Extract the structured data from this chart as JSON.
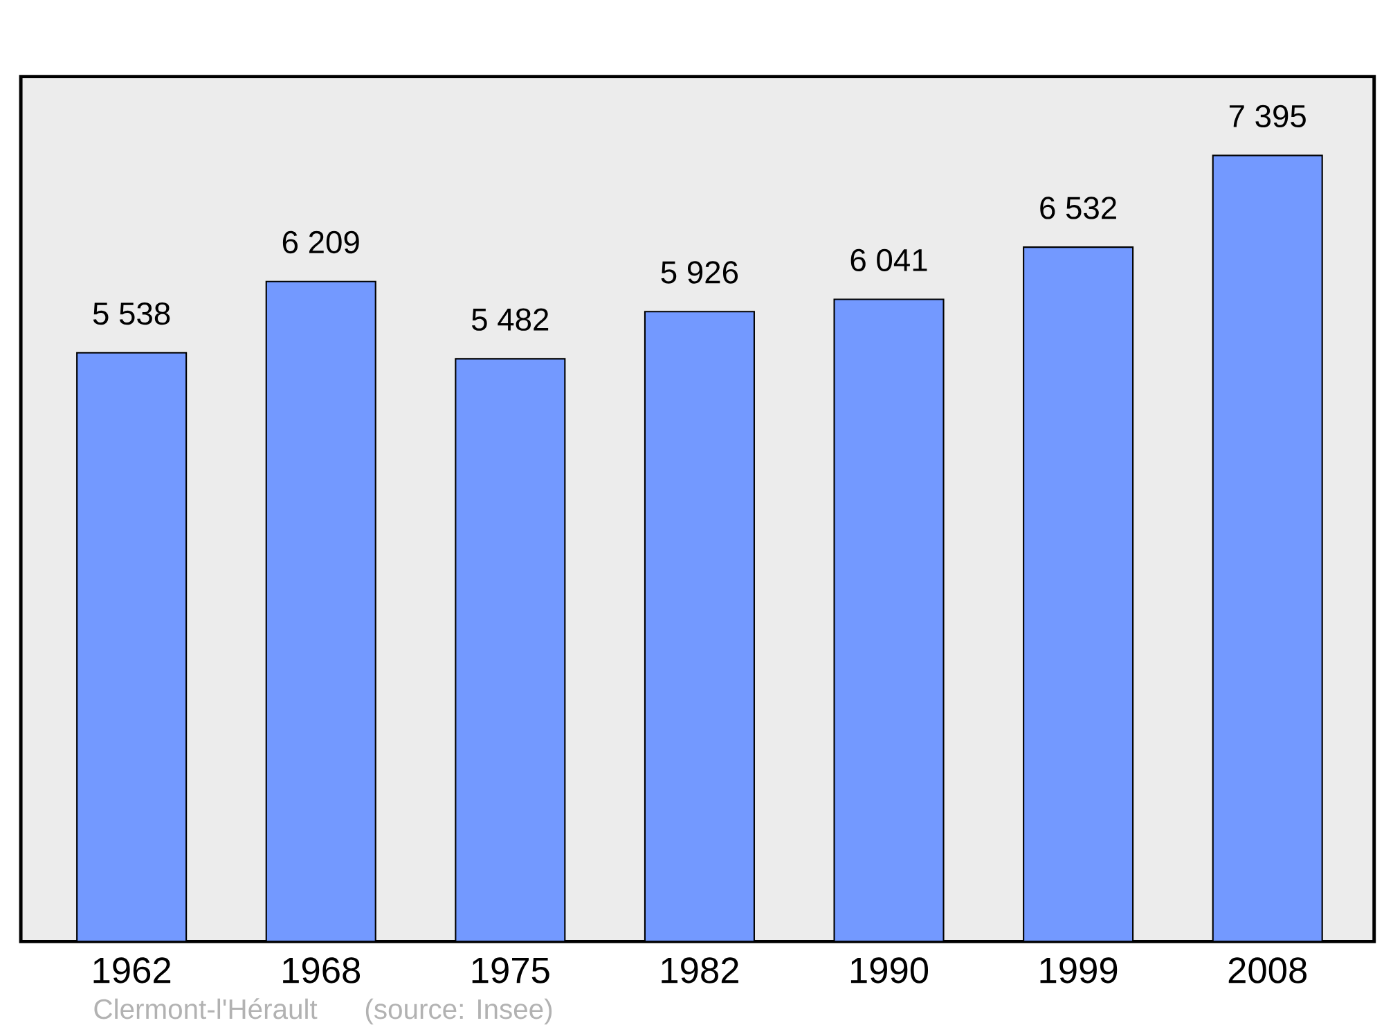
{
  "chart_data": {
    "type": "bar",
    "categories": [
      "1962",
      "1968",
      "1975",
      "1982",
      "1990",
      "1999",
      "2008"
    ],
    "values": [
      5538,
      6209,
      5482,
      5926,
      6041,
      6532,
      7395
    ],
    "value_labels": [
      "5 538",
      "6 209",
      "5 482",
      "5 926",
      "6 041",
      "6 532",
      "7 395"
    ],
    "color": "#7399ff",
    "ylim": [
      0,
      8137
    ],
    "annotations": [
      "Clermont-l'Hérault",
      "(source: Insee)"
    ]
  }
}
